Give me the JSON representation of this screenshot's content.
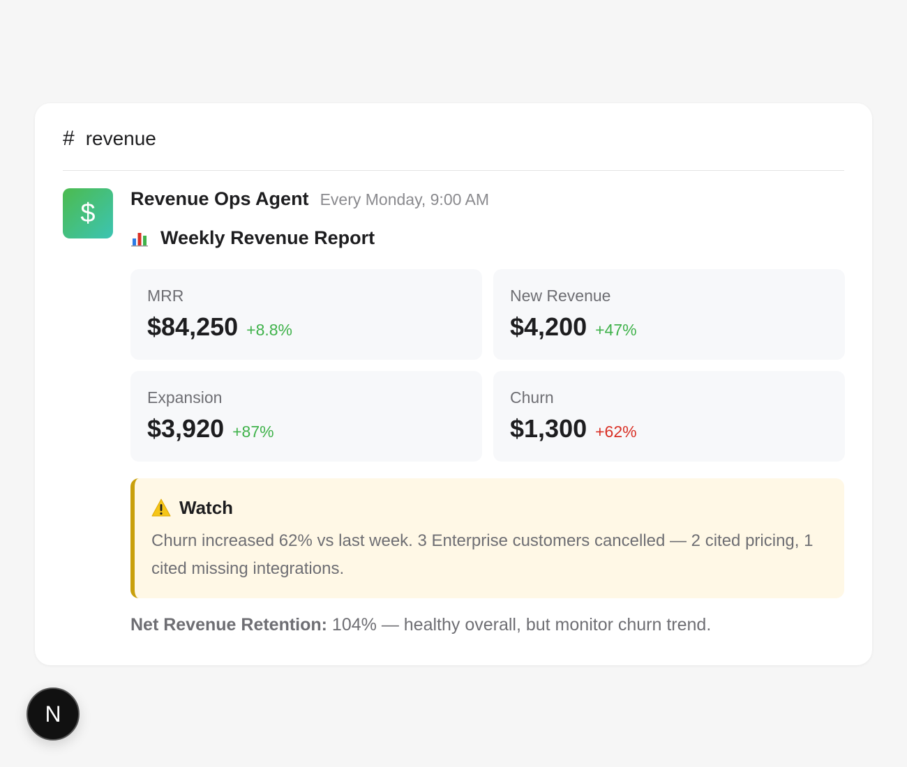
{
  "channel": {
    "hash": "#",
    "name": "revenue"
  },
  "message": {
    "avatar_symbol": "$",
    "sender": "Revenue Ops Agent",
    "timestamp": "Every Monday, 9:00 AM",
    "report_title": "Weekly Revenue Report",
    "report_icon": "bar-chart-icon"
  },
  "metrics": [
    {
      "label": "MRR",
      "value": "$84,250",
      "change": "+8.8%",
      "change_color": "#3fb24a"
    },
    {
      "label": "New Revenue",
      "value": "$4,200",
      "change": "+47%",
      "change_color": "#3fb24a"
    },
    {
      "label": "Expansion",
      "value": "$3,920",
      "change": "+87%",
      "change_color": "#3fb24a"
    },
    {
      "label": "Churn",
      "value": "$1,300",
      "change": "+62%",
      "change_color": "#d93025"
    }
  ],
  "callout": {
    "icon": "warning-icon",
    "title": "Watch",
    "body": "Churn increased 62% vs last week. 3 Enterprise customers cancelled — 2 cited pricing, 1 cited missing integrations."
  },
  "summary": {
    "label": "Net Revenue Retention:",
    "text": " 104% — healthy overall, but monitor churn trend."
  },
  "badge": {
    "letter": "N"
  },
  "colors": {
    "accent_green": "#3fb24a",
    "alert_red": "#d93025",
    "callout_bg": "#fff8e6",
    "callout_border": "#c9a00c"
  }
}
